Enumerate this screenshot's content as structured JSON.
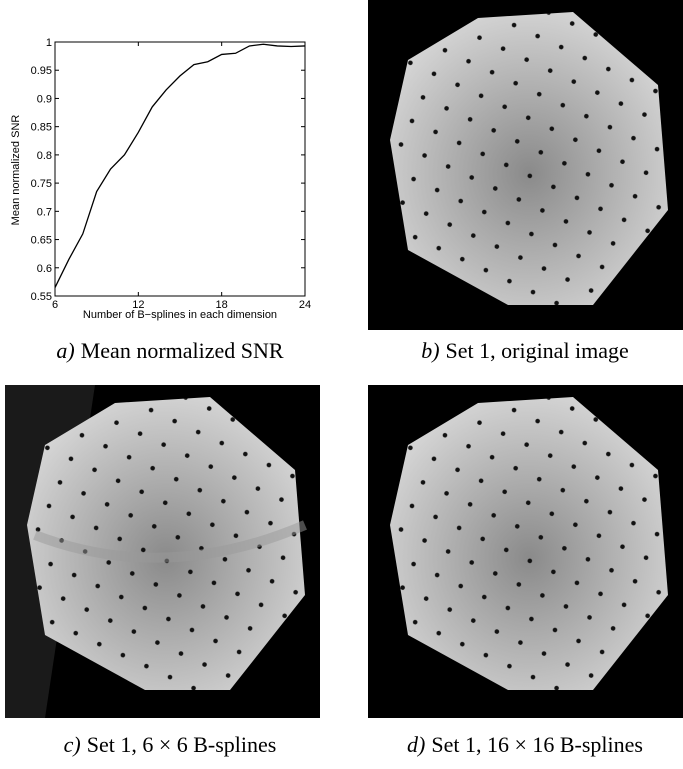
{
  "chart_data": {
    "type": "line",
    "xlabel": "Number of B−splines in each dimension",
    "ylabel": "Mean normalized SNR",
    "x": [
      6,
      7,
      8,
      9,
      10,
      11,
      12,
      13,
      14,
      15,
      16,
      17,
      18,
      19,
      20,
      21,
      22,
      23,
      24
    ],
    "values": [
      0.565,
      0.615,
      0.66,
      0.735,
      0.775,
      0.8,
      0.84,
      0.885,
      0.915,
      0.94,
      0.96,
      0.965,
      0.978,
      0.98,
      0.993,
      0.996,
      0.993,
      0.992,
      0.993
    ],
    "color": "#000000",
    "xlim": [
      6,
      24
    ],
    "xticks": [
      6,
      12,
      18,
      24
    ],
    "ylim": [
      0.55,
      1
    ],
    "yticks": [
      0.55,
      0.6,
      0.65,
      0.7,
      0.75,
      0.8,
      0.85,
      0.9,
      0.95,
      1
    ]
  },
  "panels": [
    {
      "label": "a)",
      "text": "Mean normalized SNR"
    },
    {
      "label": "b)",
      "text": "Set 1, original image"
    },
    {
      "label": "c)",
      "text": "Set 1, 6 × 6 B-splines"
    },
    {
      "label": "d)",
      "text": "Set 1, 16 × 16 B-splines"
    }
  ]
}
